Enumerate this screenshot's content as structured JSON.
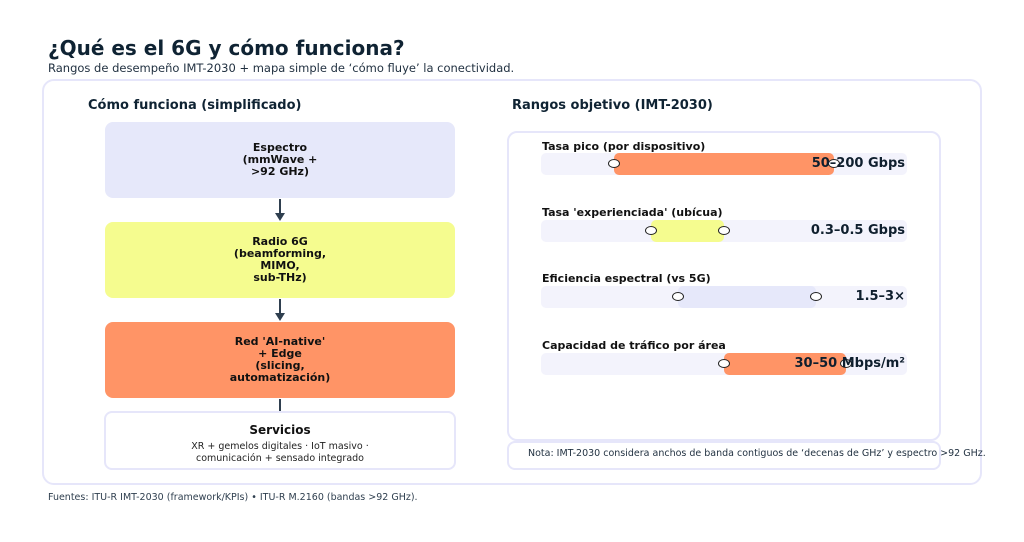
{
  "title": "¿Qué es el 6G y cómo funciona?",
  "subtitle": "Rangos de desempeño IMT-2030 + mapa simple de ‘cómo fluye’ la conectividad.",
  "colors": {
    "spectrum": "#e6e8fa",
    "radio": "#f5fc8f",
    "network": "#ff9466",
    "border": "#e6e6fa",
    "track": "#f3f3fc"
  },
  "flow": {
    "title": "Cómo funciona (simplificado)",
    "steps": [
      {
        "label": "Espectro\n(mmWave +\n>92 GHz)"
      },
      {
        "label": "Radio 6G\n(beamforming,\nMIMO,\nsub-THz)"
      },
      {
        "label": "Red 'AI-native'\n+ Edge\n(slicing,\nautomatización)"
      }
    ],
    "services": {
      "title": "Servicios",
      "description": "XR + gemelos digitales · IoT masivo · comunicación + sensado integrado"
    }
  },
  "metrics": {
    "title": "Rangos objetivo (IMT-2030)",
    "items": [
      {
        "label": "Tasa pico (por dispositivo)",
        "value": "50–200 Gbps",
        "fill": "#ff9466",
        "range_start": 0.2,
        "range_end": 0.8
      },
      {
        "label": "Tasa 'experienciada' (ubícua)",
        "value": "0.3–0.5 Gbps",
        "fill": "#f5fc8f",
        "range_start": 0.3,
        "range_end": 0.5
      },
      {
        "label": "Eficiencia espectral (vs 5G)",
        "value": "1.5–3×",
        "fill": "#e6e8fa",
        "range_start": 0.375,
        "range_end": 0.75
      },
      {
        "label": "Capacidad de tráfico por área",
        "value": "30–50 Mbps/m²",
        "fill": "#ff9466",
        "range_start": 0.5,
        "range_end": 0.833
      }
    ],
    "note": "Nota: IMT-2030 considera anchos de banda contiguos de ‘decenas de GHz’ y espectro >92 GHz."
  },
  "sources": "Fuentes: ITU-R IMT-2030 (framework/KPIs) • ITU-R M.2160 (bandas >92 GHz)."
}
